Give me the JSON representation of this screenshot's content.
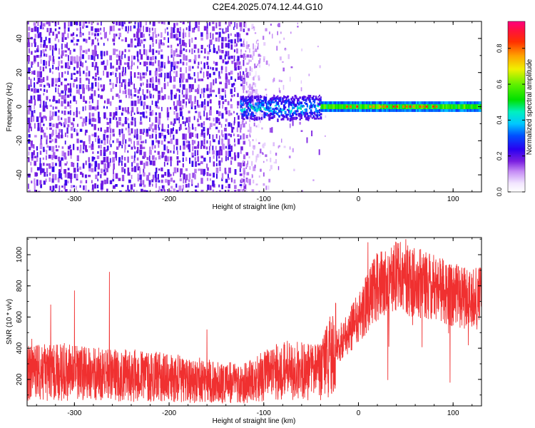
{
  "title": "C2E4.2025.074.12.44.G10",
  "colors": {
    "snr_line": "#f03030",
    "axis": "#000000",
    "background": "#ffffff"
  },
  "chart_data": [
    {
      "type": "heatmap",
      "xlabel": "Height of straight line (km)",
      "ylabel": "Frequency (Hz)",
      "xlim": [
        -350,
        130
      ],
      "ylim": [
        -50,
        50
      ],
      "x_ticks": [
        -300,
        -200,
        -100,
        0,
        100
      ],
      "x_tick_labels": [
        "-300",
        "-200",
        "-100",
        "0",
        "100"
      ],
      "y_ticks": [
        -40,
        -20,
        0,
        20,
        40
      ],
      "y_tick_labels": [
        "-40",
        "-20",
        "0",
        "20",
        "40"
      ],
      "colorbar": {
        "label": "Normalized spectral amplitude",
        "range": [
          0,
          0.95
        ],
        "ticks": [
          0,
          0.2,
          0.4,
          0.6,
          0.8
        ],
        "tick_labels": [
          "0.0",
          "0.2",
          "0.4",
          "0.6",
          "0.8"
        ],
        "colormap": "rainbow (violet to magenta)"
      },
      "features": [
        {
          "x_range": [
            -350,
            -125
          ],
          "frequency_range": [
            -50,
            50
          ],
          "amplitude": 0.1,
          "description_value": "broadband noise"
        },
        {
          "x_range": [
            -125,
            -40
          ],
          "frequency_range": [
            -5,
            5
          ],
          "amplitude": 0.3
        },
        {
          "x_range": [
            -40,
            130
          ],
          "frequency_range": [
            -2,
            2
          ],
          "amplitude": 0.85
        }
      ]
    },
    {
      "type": "line",
      "xlabel": "Height of straight line (km)",
      "ylabel": "SNR (10 * v/v)",
      "xlim": [
        -350,
        130
      ],
      "ylim": [
        30,
        1110
      ],
      "x_ticks": [
        -300,
        -200,
        -100,
        0,
        100
      ],
      "x_tick_labels": [
        "-300",
        "-200",
        "-100",
        "0",
        "100"
      ],
      "y_ticks": [
        200,
        400,
        600,
        800,
        1000
      ],
      "y_tick_labels": [
        "200",
        "400",
        "600",
        "800",
        "1000"
      ],
      "series": [
        {
          "x": [
            -350,
            -330,
            -310,
            -300,
            -280,
            -260,
            -240,
            -220,
            -200,
            -180,
            -160,
            -140,
            -120,
            -100,
            -80,
            -60,
            -40,
            -30,
            -20,
            -10,
            0,
            10,
            20,
            30,
            40,
            50,
            60,
            70,
            80,
            90,
            100,
            110,
            120,
            130
          ],
          "y": [
            240,
            245,
            250,
            240,
            235,
            230,
            225,
            220,
            210,
            200,
            190,
            180,
            180,
            220,
            260,
            250,
            250,
            350,
            430,
            500,
            600,
            700,
            800,
            830,
            850,
            840,
            830,
            800,
            780,
            760,
            740,
            730,
            720,
            720
          ],
          "peaks": [
            [
              -345,
              460
            ],
            [
              -325,
              680
            ],
            [
              -300,
              770
            ],
            [
              -263,
              890
            ],
            [
              -160,
              520
            ],
            [
              10,
              1080
            ],
            [
              40,
              1080
            ],
            [
              50,
              1100
            ]
          ]
        }
      ]
    }
  ]
}
